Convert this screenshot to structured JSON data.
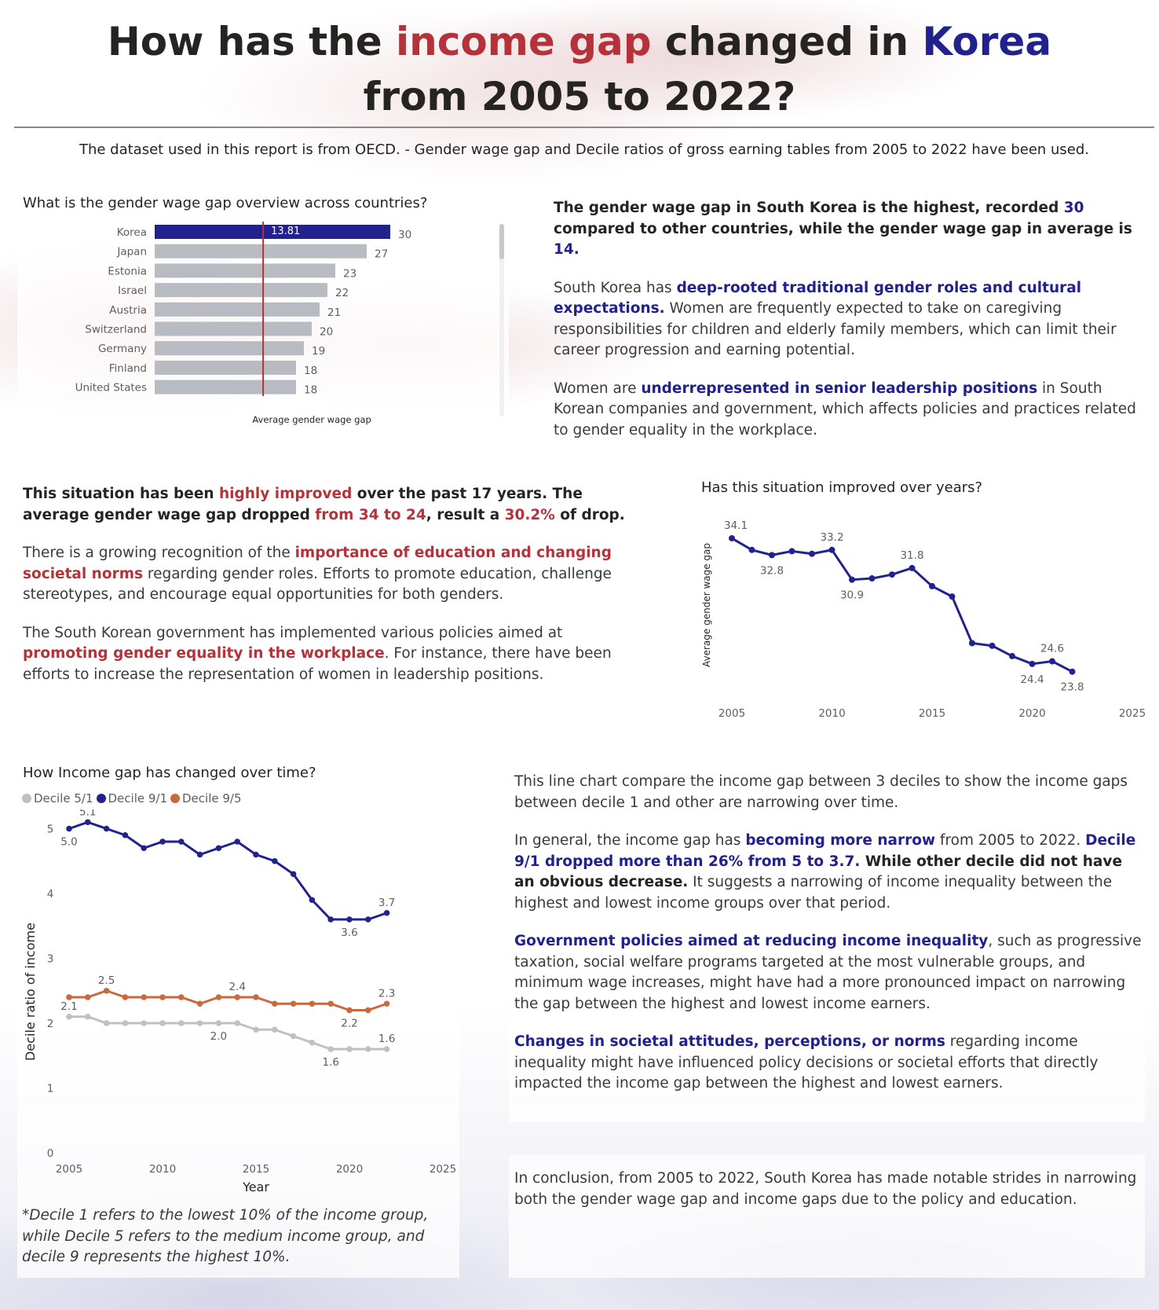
{
  "header": {
    "title_part1": "How has the ",
    "title_red": "income gap",
    "title_part2": " changed in ",
    "title_blue": "Korea",
    "title_line2": "from 2005 to 2022?",
    "subtitle": "The dataset used in this report is from OECD. - Gender wage gap and Decile ratios of gross earning tables from 2005 to 2022  have been used."
  },
  "section1": {
    "para1": [
      {
        "t": "The gender wage gap in South Korea is the highest, recorded ",
        "s": "b"
      },
      {
        "t": "30",
        "s": "blue"
      },
      {
        "t": " compared to other countries, while the gender wage gap in average is ",
        "s": "b"
      },
      {
        "t": "14.",
        "s": "blue"
      }
    ],
    "para2": [
      {
        "t": "South Korea has ",
        "s": ""
      },
      {
        "t": "deep-rooted traditional gender roles and cultural expectations.",
        "s": "blue"
      },
      {
        "t": " Women are frequently expected to take on caregiving responsibilities for children and elderly family members, which can limit their career progression and earning potential.",
        "s": ""
      }
    ],
    "para3": [
      {
        "t": "Women are ",
        "s": ""
      },
      {
        "t": "underrepresented in senior leadership positions",
        "s": "blue"
      },
      {
        "t": " in South Korean companies and government, which affects policies and practices related to gender equality in the workplace.",
        "s": ""
      }
    ]
  },
  "section2": {
    "para1": [
      {
        "t": "This situation has been ",
        "s": "b"
      },
      {
        "t": "highly improved",
        "s": "red"
      },
      {
        "t": " over the past 17 years. The average gender wage gap dropped ",
        "s": "b"
      },
      {
        "t": "from 34 to 24",
        "s": "red"
      },
      {
        "t": ", result a ",
        "s": "b"
      },
      {
        "t": "30.2%",
        "s": "red"
      },
      {
        "t": " of drop.",
        "s": "b"
      }
    ],
    "para2": [
      {
        "t": "There is a growing recognition of the ",
        "s": ""
      },
      {
        "t": "importance of education and changing societal norms",
        "s": "red"
      },
      {
        "t": " regarding gender roles. Efforts to promote education, challenge stereotypes, and encourage equal opportunities for both genders.",
        "s": ""
      }
    ],
    "para3": [
      {
        "t": "The South Korean government has implemented various policies aimed at ",
        "s": ""
      },
      {
        "t": "promoting gender equality in the workplace",
        "s": "red"
      },
      {
        "t": ". For instance, there have been efforts to increase the representation of women in leadership positions.",
        "s": ""
      }
    ]
  },
  "section3": {
    "para1": [
      {
        "t": "This line chart compare the income gap between 3 deciles to show the income gaps between decile 1 and other are narrowing over time.",
        "s": ""
      }
    ],
    "para2": [
      {
        "t": "In general, the income gap has ",
        "s": ""
      },
      {
        "t": "becoming more narrow",
        "s": "blue"
      },
      {
        "t": " from 2005 to 2022. ",
        "s": ""
      },
      {
        "t": "Decile 9/1 dropped more than 26% from 5 to 3.7.",
        "s": "blue"
      },
      {
        "t": " While other decile did not have an obvious decrease.",
        "s": "b"
      },
      {
        "t": " It suggests a narrowing of income inequality between the highest and lowest income groups over that period.",
        "s": ""
      }
    ],
    "para3": [
      {
        "t": "Government policies aimed at reducing income inequality",
        "s": "blue"
      },
      {
        "t": ", such as progressive taxation, social welfare programs targeted at the most vulnerable groups, and minimum wage increases, might have had a more pronounced impact on narrowing the gap between the highest and lowest income earners.",
        "s": ""
      }
    ],
    "para4": [
      {
        "t": "Changes in societal attitudes, perceptions, or norms",
        "s": "blue"
      },
      {
        "t": " regarding income inequality might have influenced policy decisions or societal efforts that directly impacted the income gap between the highest and lowest earners.",
        "s": ""
      }
    ],
    "conclusion": "In conclusion, from 2005 to 2022, South Korea has made notable strides in narrowing both the gender wage gap and income gaps due to the policy and education."
  },
  "footnote": "*Decile 1 refers to the lowest 10% of the income group, while Decile 5 refers to the medium income group, and decile 9 represents the highest 10%.",
  "colors": {
    "korea_bar": "#22228f",
    "other_bar": "#b9bbc2",
    "avg_line": "#b5323a",
    "decile51": "#c0c0c0",
    "decile91": "#22228f",
    "decile95": "#c8693e"
  },
  "chart_data": [
    {
      "type": "bar",
      "orientation": "horizontal",
      "title": "What is the gender wage gap overview across countries?",
      "categories": [
        "Korea",
        "Japan",
        "Estonia",
        "Israel",
        "Austria",
        "Switzerland",
        "Germany",
        "Finland",
        "United States"
      ],
      "values": [
        30,
        27,
        23,
        22,
        21,
        20,
        19,
        18,
        18
      ],
      "xlim": [
        0,
        30
      ],
      "reference_line": {
        "value": 13.81,
        "label_value": "13.81",
        "label": "Average gender wage gap"
      }
    },
    {
      "type": "line",
      "title": "Has this situation improved over years?",
      "xlabel": "",
      "ylabel": "Average gender wage gap",
      "x": [
        2005,
        2006,
        2007,
        2008,
        2009,
        2010,
        2011,
        2012,
        2013,
        2014,
        2015,
        2016,
        2017,
        2018,
        2019,
        2020,
        2021,
        2022
      ],
      "values": [
        34.1,
        33.2,
        32.8,
        33.1,
        32.9,
        33.2,
        30.9,
        31.0,
        31.3,
        31.8,
        30.4,
        29.6,
        26.0,
        25.8,
        25.0,
        24.4,
        24.6,
        23.8
      ],
      "labels": [
        {
          "x": 2005,
          "text": "34.1"
        },
        {
          "x": 2007,
          "text": "32.8"
        },
        {
          "x": 2010,
          "text": "33.2"
        },
        {
          "x": 2011,
          "text": "30.9"
        },
        {
          "x": 2014,
          "text": "31.8"
        },
        {
          "x": 2020,
          "text": "24.4"
        },
        {
          "x": 2021,
          "text": "24.6"
        },
        {
          "x": 2022,
          "text": "23.8"
        }
      ],
      "xticks": [
        2005,
        2010,
        2015,
        2020,
        2025
      ],
      "xlim": [
        2005,
        2025
      ],
      "ylim": [
        23.6,
        34.4
      ]
    },
    {
      "type": "line",
      "title": "How Income gap has changed over time?",
      "xlabel": "Year",
      "ylabel": "Decile ratio of income",
      "legend": "top-left",
      "x": [
        2005,
        2006,
        2007,
        2008,
        2009,
        2010,
        2011,
        2012,
        2013,
        2014,
        2015,
        2016,
        2017,
        2018,
        2019,
        2020,
        2021,
        2022
      ],
      "series": [
        {
          "name": "Decile 5/1",
          "values": [
            2.1,
            2.1,
            2.0,
            2.0,
            2.0,
            2.0,
            2.0,
            2.0,
            2.0,
            2.0,
            1.9,
            1.9,
            1.8,
            1.7,
            1.6,
            1.6,
            1.6,
            1.6
          ],
          "labels": [
            {
              "x": 2005,
              "text": "2.1"
            },
            {
              "x": 2013,
              "text": "2.0"
            },
            {
              "x": 2019,
              "text": "1.6"
            },
            {
              "x": 2022,
              "text": "1.6"
            }
          ]
        },
        {
          "name": "Decile 9/1",
          "values": [
            5.0,
            5.1,
            5.0,
            4.9,
            4.7,
            4.8,
            4.8,
            4.6,
            4.7,
            4.8,
            4.6,
            4.5,
            4.3,
            3.9,
            3.6,
            3.6,
            3.6,
            3.7
          ],
          "labels": [
            {
              "x": 2005,
              "text": "5.0"
            },
            {
              "x": 2006,
              "text": "5.1"
            },
            {
              "x": 2020,
              "text": "3.6"
            },
            {
              "x": 2022,
              "text": "3.7"
            }
          ]
        },
        {
          "name": "Decile 9/5",
          "values": [
            2.4,
            2.4,
            2.5,
            2.4,
            2.4,
            2.4,
            2.4,
            2.3,
            2.4,
            2.4,
            2.4,
            2.3,
            2.3,
            2.3,
            2.3,
            2.2,
            2.2,
            2.3
          ],
          "labels": [
            {
              "x": 2007,
              "text": "2.5"
            },
            {
              "x": 2014,
              "text": "2.4"
            },
            {
              "x": 2020,
              "text": "2.2"
            },
            {
              "x": 2022,
              "text": "2.3"
            }
          ]
        }
      ],
      "yticks": [
        0,
        1,
        2,
        3,
        4,
        5
      ],
      "xticks": [
        2005,
        2010,
        2015,
        2020,
        2025
      ],
      "xlim": [
        2005,
        2025
      ],
      "ylim": [
        0,
        5.2
      ]
    }
  ]
}
